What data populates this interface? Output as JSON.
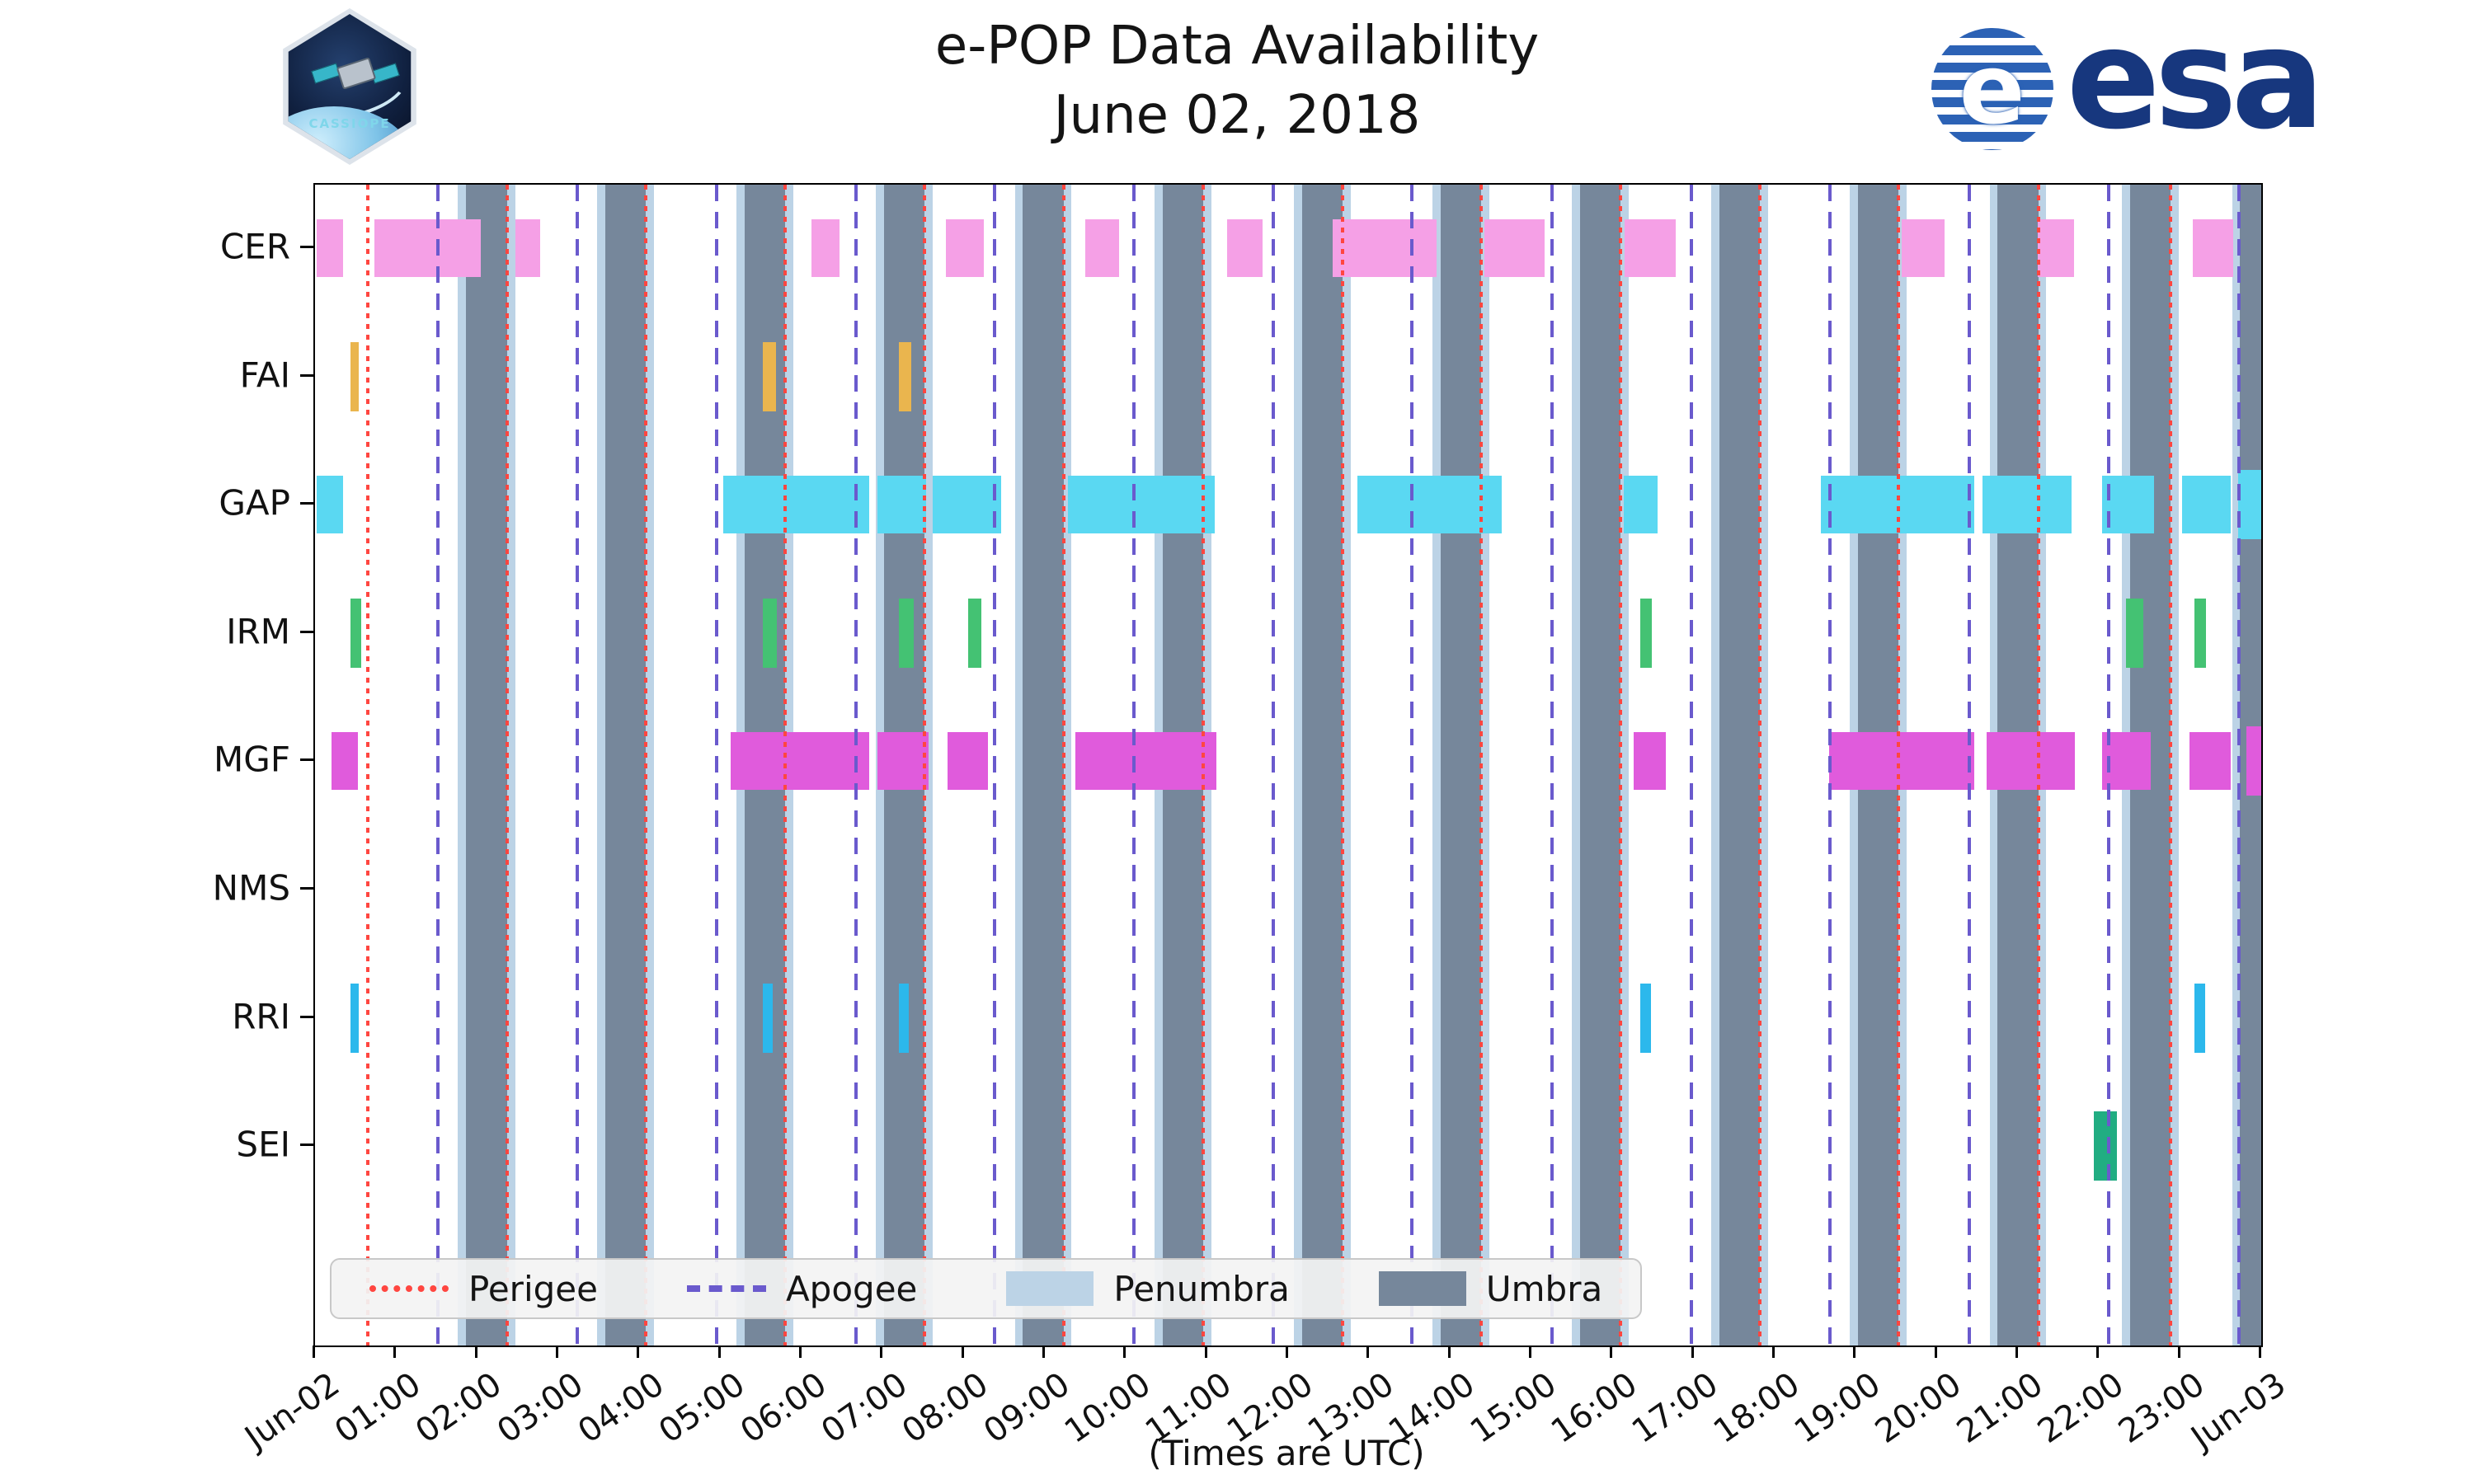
{
  "header": {
    "title": "e-POP Data Availability",
    "subtitle": "June 02, 2018",
    "cassiope_logo_text": "CASSIOPE",
    "esa_logo_text": "esa"
  },
  "chart_data": {
    "type": "timeline",
    "title": "e-POP Data Availability",
    "subtitle": "June 02, 2018",
    "xlabel": "(Times are UTC)",
    "x_range_hours": [
      0,
      24
    ],
    "x_tick_labels": [
      "Jun-02",
      "01:00",
      "02:00",
      "03:00",
      "04:00",
      "05:00",
      "06:00",
      "07:00",
      "08:00",
      "09:00",
      "10:00",
      "11:00",
      "12:00",
      "13:00",
      "14:00",
      "15:00",
      "16:00",
      "17:00",
      "18:00",
      "19:00",
      "20:00",
      "21:00",
      "22:00",
      "23:00",
      "Jun-03"
    ],
    "instruments": [
      "CER",
      "FAI",
      "GAP",
      "IRM",
      "MGF",
      "NMS",
      "RRI",
      "SEI"
    ],
    "colors": {
      "cer": "#F5A0E6",
      "fai": "#EAB54E",
      "gap": "#5AD8F2",
      "irm": "#44C273",
      "mgf": "#E05BDC",
      "nms": "#999999",
      "rri": "#2CB8EC",
      "sei": "#21AD82",
      "umbra": "#76879B",
      "penumbra": "#BCD3E6",
      "perigee": "#FF4640",
      "apogee": "#6A5ACD"
    },
    "bars": {
      "CER": [
        [
          0.02,
          0.35
        ],
        [
          0.73,
          2.04
        ],
        [
          2.47,
          2.78
        ],
        [
          6.12,
          6.47
        ],
        [
          7.78,
          8.25
        ],
        [
          9.5,
          9.92
        ],
        [
          11.25,
          11.68
        ],
        [
          12.55,
          13.83
        ],
        [
          14.42,
          15.16
        ],
        [
          16.15,
          16.78
        ],
        [
          19.57,
          20.1
        ],
        [
          21.24,
          21.69
        ],
        [
          23.16,
          23.65
        ]
      ],
      "FAI": [
        [
          0.44,
          0.54
        ],
        [
          5.52,
          5.68
        ],
        [
          7.2,
          7.35
        ]
      ],
      "GAP": [
        [
          0.02,
          0.35
        ],
        [
          5.03,
          6.83
        ],
        [
          6.94,
          7.54
        ],
        [
          7.62,
          8.46
        ],
        [
          9.28,
          11.1
        ],
        [
          12.85,
          14.63
        ],
        [
          16.14,
          16.56
        ],
        [
          18.57,
          20.46
        ],
        [
          20.56,
          21.66
        ],
        [
          22.04,
          22.68
        ],
        [
          23.02,
          23.62
        ],
        [
          23.72,
          24
        ]
      ],
      "IRM": [
        [
          0.44,
          0.57
        ],
        [
          5.52,
          5.7
        ],
        [
          7.2,
          7.38
        ],
        [
          8.05,
          8.22
        ],
        [
          16.34,
          16.48
        ],
        [
          22.33,
          22.55
        ],
        [
          23.18,
          23.32
        ]
      ],
      "MGF": [
        [
          0.2,
          0.53
        ],
        [
          5.13,
          6.83
        ],
        [
          6.94,
          7.57
        ],
        [
          7.8,
          8.3
        ],
        [
          9.38,
          11.12
        ],
        [
          16.26,
          16.66
        ],
        [
          18.67,
          20.46
        ],
        [
          20.61,
          21.7
        ],
        [
          22.04,
          22.64
        ],
        [
          23.12,
          23.62
        ],
        [
          23.82,
          24
        ]
      ],
      "NMS": [],
      "RRI": [
        [
          0.44,
          0.54
        ],
        [
          5.52,
          5.64
        ],
        [
          7.2,
          7.32
        ],
        [
          16.34,
          16.47
        ],
        [
          23.18,
          23.31
        ]
      ],
      "SEI": [
        [
          21.94,
          22.22
        ]
      ]
    },
    "umbra_bands": [
      [
        1.86,
        2.37
      ],
      [
        3.58,
        4.08
      ],
      [
        5.3,
        5.8
      ],
      [
        7.02,
        7.52
      ],
      [
        8.73,
        9.23
      ],
      [
        10.45,
        10.95
      ],
      [
        12.17,
        12.67
      ],
      [
        13.88,
        14.38
      ],
      [
        15.6,
        16.1
      ],
      [
        17.32,
        17.82
      ],
      [
        19.03,
        19.53
      ],
      [
        20.75,
        21.25
      ],
      [
        22.38,
        22.88
      ],
      [
        23.74,
        24
      ]
    ],
    "penumbra_pad_hours": 0.1,
    "perigee_hours": [
      0.65,
      2.37,
      4.08,
      5.8,
      7.52,
      9.23,
      10.95,
      12.67,
      14.38,
      16.1,
      17.82,
      19.53,
      21.25,
      22.88
    ],
    "apogee_hours": [
      1.52,
      3.23,
      4.95,
      6.67,
      8.38,
      10.1,
      11.82,
      13.53,
      15.25,
      16.97,
      18.68,
      20.4,
      22.12,
      23.73
    ],
    "legend": [
      {
        "label": "Perigee",
        "swatch": "dotted-line",
        "color": "#FF4640"
      },
      {
        "label": "Apogee",
        "swatch": "dashed-line",
        "color": "#6A5ACD"
      },
      {
        "label": "Penumbra",
        "swatch": "patch",
        "color": "#BCD3E6"
      },
      {
        "label": "Umbra",
        "swatch": "patch",
        "color": "#76879B"
      }
    ]
  }
}
